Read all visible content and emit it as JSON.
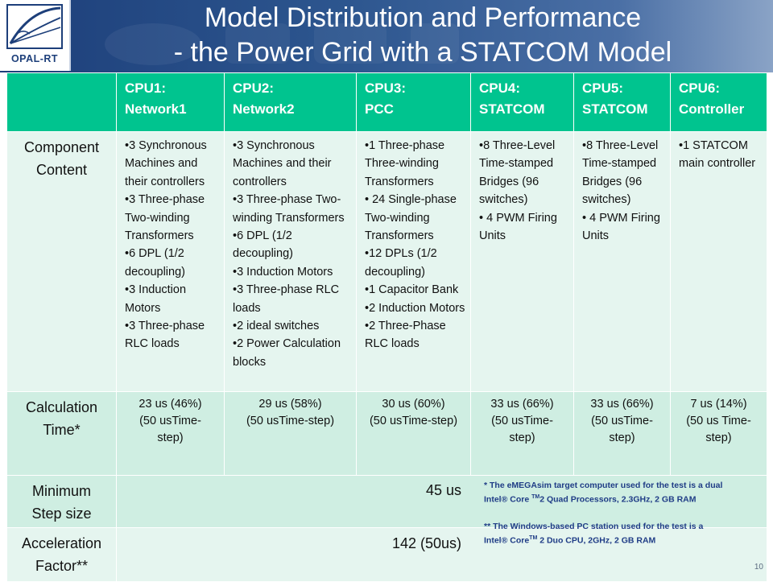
{
  "slide": {
    "title_line1": "Model Distribution and Performance",
    "title_line2": "-  the Power Grid with a STATCOM Model",
    "logo_text": "OPAL-RT",
    "page_number": "10",
    "colors": {
      "header_bg": "#1d3f7a",
      "table_header": "#00c48f",
      "row_light": "#e5f5ef",
      "row_mid": "#cfeee2",
      "footnote": "#1f3c86"
    }
  },
  "table": {
    "headers": [
      {
        "line1": "CPU1:",
        "line2": "Network1"
      },
      {
        "line1": "CPU2:",
        "line2": "Network2"
      },
      {
        "line1": "CPU3:",
        "line2": "PCC"
      },
      {
        "line1": "CPU4:",
        "line2": "STATCOM"
      },
      {
        "line1": "CPU5:",
        "line2": "STATCOM"
      },
      {
        "line1": "CPU6:",
        "line2": "Controller"
      }
    ],
    "row_labels": {
      "component": {
        "line1": "Component",
        "line2": "Content"
      },
      "calc": {
        "line1": "Calculation",
        "line2": "Time*"
      },
      "step": {
        "line1": "Minimum",
        "line2": "Step size"
      },
      "accel": {
        "line1": "Acceleration",
        "line2": "Factor**"
      }
    },
    "components": [
      [
        "•3 Synchronous Machines and their controllers",
        "•3  Three-phase Two-winding Transformers",
        "•6 DPL (1/2 decoupling)",
        "•3 Induction Motors",
        "•3 Three-phase RLC loads"
      ],
      [
        "•3 Synchronous Machines and their controllers",
        "•3  Three-phase Two-winding Transformers",
        "•6 DPL (1/2 decoupling)",
        "•3 Induction Motors",
        "•3 Three-phase RLC loads",
        "•2 ideal switches",
        "•2 Power Calculation blocks"
      ],
      [
        "•1 Three-phase Three-winding Transformers",
        "• 24 Single-phase Two-winding Transformers",
        "•12 DPLs (1/2 decoupling)",
        "•1 Capacitor Bank",
        "•2 Induction Motors",
        "•2 Three-Phase RLC loads"
      ],
      [
        "•8 Three-Level Time-stamped Bridges (96 switches)",
        "• 4 PWM Firing Units"
      ],
      [
        "•8 Three-Level Time-stamped Bridges (96 switches)",
        "• 4 PWM Firing Units"
      ],
      [
        "•1 STATCOM main controller"
      ]
    ],
    "calc_times": [
      {
        "line1": "23 us (46%)",
        "line2": "(50 usTime-",
        "line3": "step)"
      },
      {
        "line1": "29 us (58%)",
        "line2": "(50 usTime-step)",
        "line3": ""
      },
      {
        "line1": "30 us (60%)",
        "line2": "(50 usTime-step)",
        "line3": ""
      },
      {
        "line1": "33 us (66%)",
        "line2": "(50 usTime-",
        "line3": "step)"
      },
      {
        "line1": "33 us (66%)",
        "line2": "(50 usTime-",
        "line3": "step)"
      },
      {
        "line1": "7 us (14%)",
        "line2": "(50 us Time-",
        "line3": "step)"
      }
    ],
    "min_step": "45 us",
    "acceleration": "142  (50us)"
  },
  "footnotes": {
    "fn1_a": "* The eMEGAsim target computer used for the test is a dual Intel® Core ",
    "fn1_tm": "TM",
    "fn1_b": "2 Quad Processors, 2.3GHz, 2 GB RAM",
    "fn2_a": "** The Windows-based PC station used for the test is a Intel® Core",
    "fn2_tm": "TM",
    "fn2_b": " 2 Duo CPU, 2GHz, 2 GB RAM"
  }
}
